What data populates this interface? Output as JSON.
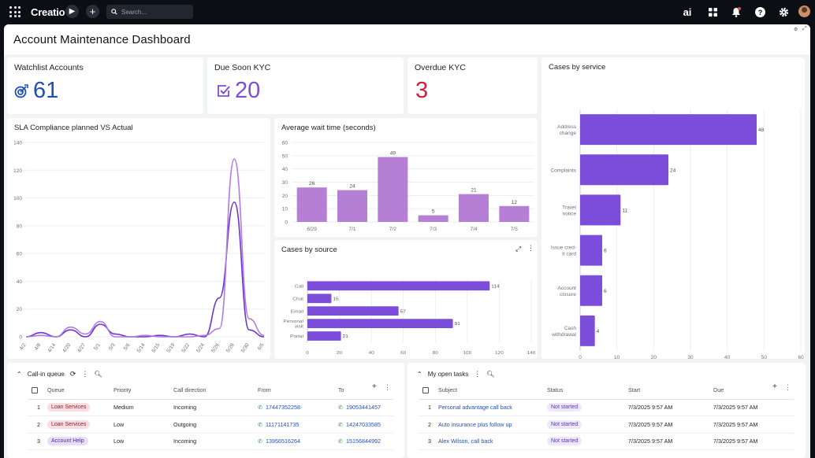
{
  "topbar": {
    "logo": "Creatio",
    "search_placeholder": "Search...",
    "ai_label": "ai"
  },
  "page": {
    "title": "Account Maintenance Dashboard"
  },
  "kpis": [
    {
      "title": "Watchlist Accounts",
      "value": "61",
      "color": "#1d4fb4"
    },
    {
      "title": "Due Soon KYC",
      "value": "20",
      "color": "#7c4ddb"
    },
    {
      "title": "Overdue KYC",
      "value": "3",
      "color": "#d61f3a"
    }
  ],
  "charts": {
    "service": {
      "title": "Cases by service"
    },
    "sla": {
      "title": "SLA Compliance planned VS Actual"
    },
    "wait": {
      "title": "Average wait time (seconds)"
    },
    "source": {
      "title": "Cases by source"
    }
  },
  "chart_data": [
    {
      "type": "bar",
      "orientation": "horizontal",
      "title": "Cases by service",
      "categories": [
        "Address change",
        "Complaints",
        "Travel notice",
        "Issue credit card",
        "Account closure",
        "Cash withdrawal"
      ],
      "values": [
        48,
        24,
        11,
        6,
        6,
        4
      ],
      "xlim": [
        0,
        60
      ],
      "xticks": [
        0,
        10,
        20,
        30,
        40,
        50,
        60
      ],
      "color": "#7c4ddb"
    },
    {
      "type": "line",
      "title": "SLA Compliance planned VS Actual",
      "x": [
        "4/2",
        "4/8",
        "4/14",
        "4/20",
        "4/27",
        "5/1",
        "5/3",
        "5/6",
        "5/14",
        "5/15",
        "5/19",
        "5/22",
        "5/24",
        "5/26",
        "5/28",
        "5/30",
        "6/5"
      ],
      "ylim": [
        0,
        140
      ],
      "yticks": [
        0,
        20,
        40,
        60,
        80,
        100,
        120,
        140
      ],
      "series": [
        {
          "color": "#6a35c9",
          "values": [
            0,
            3,
            0,
            5,
            0,
            9,
            2,
            0,
            0,
            1,
            0,
            2,
            0,
            28,
            97,
            5,
            0
          ]
        },
        {
          "color": "#b27ae8",
          "values": [
            0,
            1,
            0,
            7,
            2,
            11,
            0,
            0,
            1,
            0,
            0,
            0,
            1,
            6,
            128,
            13,
            1
          ]
        }
      ]
    },
    {
      "type": "bar",
      "title": "Average wait time (seconds)",
      "categories": [
        "6/29",
        "7/1",
        "7/2",
        "7/3",
        "7/4",
        "7/5"
      ],
      "values": [
        26,
        24,
        49,
        5,
        21,
        12
      ],
      "ylim": [
        0,
        60
      ],
      "yticks": [
        0,
        10,
        20,
        30,
        40,
        50,
        60
      ],
      "color": "#b57fd6"
    },
    {
      "type": "bar",
      "orientation": "horizontal",
      "title": "Cases by source",
      "categories": [
        "Call",
        "Chat",
        "Email",
        "Personal visit",
        "Portal"
      ],
      "values": [
        114,
        15,
        57,
        91,
        21
      ],
      "xlim": [
        0,
        140
      ],
      "xticks": [
        0,
        20,
        40,
        60,
        80,
        100,
        120,
        140
      ],
      "color": "#7c4ddb"
    }
  ],
  "call_queue": {
    "title": "Call-in queue",
    "columns": [
      "Queue",
      "Priority",
      "Call direction",
      "From",
      "To"
    ],
    "rows": [
      {
        "n": "1",
        "queue": "Loan Services",
        "priority": "Medium",
        "direction": "Incoming",
        "from": "17447352258",
        "to": "19053441457"
      },
      {
        "n": "2",
        "queue": "Loan Services",
        "priority": "Low",
        "direction": "Outgoing",
        "from": "11171141735",
        "to": "14247033585"
      },
      {
        "n": "3",
        "queue": "Account Help",
        "priority": "Low",
        "direction": "Incoming",
        "from": "13956516264",
        "to": "15156844992"
      }
    ]
  },
  "tasks": {
    "title": "My open tasks",
    "columns": [
      "Subject",
      "Status",
      "Start",
      "Due"
    ],
    "rows": [
      {
        "n": "1",
        "subject": "Personal advantage call back",
        "status": "Not started",
        "start": "7/3/2025 9:57 AM",
        "due": "7/3/2025 9:57 AM"
      },
      {
        "n": "2",
        "subject": "Auto insurance plus follow up",
        "status": "Not started",
        "start": "7/3/2025 9:57 AM",
        "due": "7/3/2025 9:57 AM"
      },
      {
        "n": "3",
        "subject": "Alex Wilson, call back",
        "status": "Not started",
        "start": "7/3/2025 9:57 AM",
        "due": "7/3/2025 9:57 AM"
      }
    ]
  }
}
